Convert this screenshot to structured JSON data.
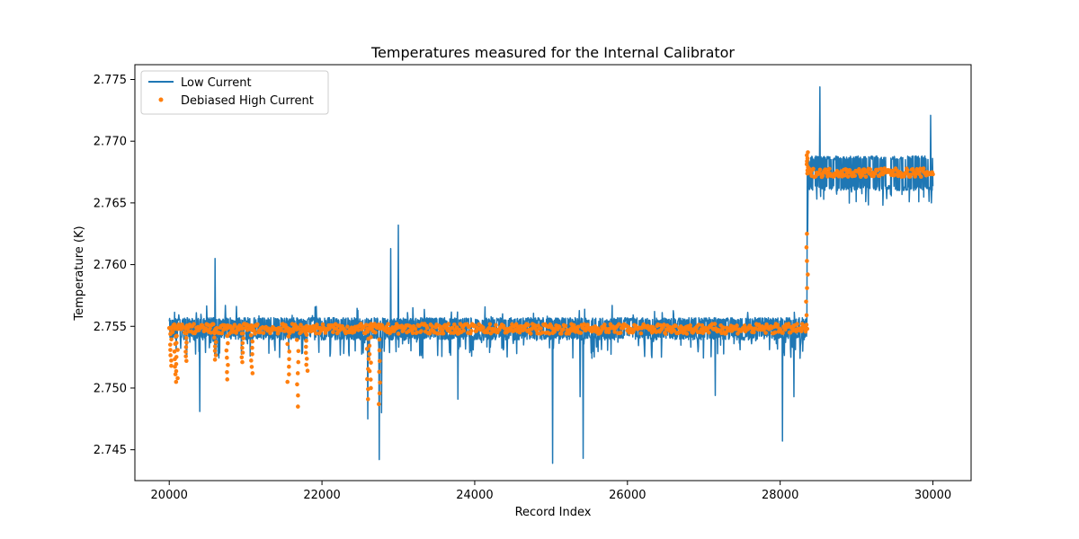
{
  "chart_data": {
    "type": "line",
    "title": "Temperatures measured for the Internal Calibrator",
    "xlabel": "Record Index",
    "ylabel": "Temperature (K)",
    "xlim": [
      19550,
      30500
    ],
    "ylim": [
      2.7425,
      2.7762
    ],
    "xticks": [
      20000,
      22000,
      24000,
      26000,
      28000,
      30000
    ],
    "xtick_labels": [
      "20000",
      "22000",
      "24000",
      "26000",
      "28000",
      "30000"
    ],
    "yticks": [
      2.745,
      2.75,
      2.755,
      2.76,
      2.765,
      2.77,
      2.775
    ],
    "ytick_labels": [
      "2.745",
      "2.750",
      "2.755",
      "2.760",
      "2.765",
      "2.770",
      "2.775"
    ],
    "legend_position": "top-left",
    "colors": {
      "low": "#1f77b4",
      "high": "#ff7f0e"
    },
    "series": [
      {
        "name": "Low Current",
        "style": "line",
        "segments": [
          {
            "x_start": 20000,
            "x_end": 28350,
            "baseline": 2.7549,
            "band_low": 2.7539,
            "band_high": 2.7557
          },
          {
            "x_start": 28350,
            "x_end": 30000,
            "baseline": 2.7674,
            "band_low": 2.766,
            "band_high": 2.7688
          }
        ],
        "spikes": [
          {
            "x": 20400,
            "y": 2.7481
          },
          {
            "x": 20600,
            "y": 2.7605
          },
          {
            "x": 22600,
            "y": 2.7475
          },
          {
            "x": 22750,
            "y": 2.7442
          },
          {
            "x": 22780,
            "y": 2.748
          },
          {
            "x": 22900,
            "y": 2.7613
          },
          {
            "x": 23000,
            "y": 2.7632
          },
          {
            "x": 23780,
            "y": 2.7491
          },
          {
            "x": 25020,
            "y": 2.7439
          },
          {
            "x": 25380,
            "y": 2.7493
          },
          {
            "x": 25420,
            "y": 2.7443
          },
          {
            "x": 27150,
            "y": 2.7494
          },
          {
            "x": 28030,
            "y": 2.7457
          },
          {
            "x": 28180,
            "y": 2.7493
          },
          {
            "x": 28360,
            "y": 2.7625
          },
          {
            "x": 28520,
            "y": 2.7744
          },
          {
            "x": 29970,
            "y": 2.7721
          },
          {
            "x": 29980,
            "y": 2.765
          }
        ]
      },
      {
        "name": "Debiased High Current",
        "style": "scatter",
        "segments": [
          {
            "x_start": 20000,
            "x_end": 28350,
            "baseline": 2.7548,
            "band_low": 2.7544,
            "band_high": 2.7552
          },
          {
            "x_start": 28350,
            "x_end": 30000,
            "baseline": 2.7674,
            "band_low": 2.7671,
            "band_high": 2.7678
          }
        ],
        "dips": [
          {
            "x": 20020,
            "y": 2.7518
          },
          {
            "x": 20080,
            "y": 2.7505
          },
          {
            "x": 20100,
            "y": 2.7508
          },
          {
            "x": 20220,
            "y": 2.7522
          },
          {
            "x": 20600,
            "y": 2.7523
          },
          {
            "x": 20760,
            "y": 2.7507
          },
          {
            "x": 20960,
            "y": 2.7521
          },
          {
            "x": 21080,
            "y": 2.7512
          },
          {
            "x": 21560,
            "y": 2.7505
          },
          {
            "x": 21680,
            "y": 2.7485
          },
          {
            "x": 21800,
            "y": 2.7514
          },
          {
            "x": 22600,
            "y": 2.7491
          },
          {
            "x": 22630,
            "y": 2.75
          },
          {
            "x": 22750,
            "y": 2.7487
          },
          {
            "x": 28350,
            "y": 2.7625
          },
          {
            "x": 28360,
            "y": 2.7691
          }
        ]
      }
    ]
  }
}
